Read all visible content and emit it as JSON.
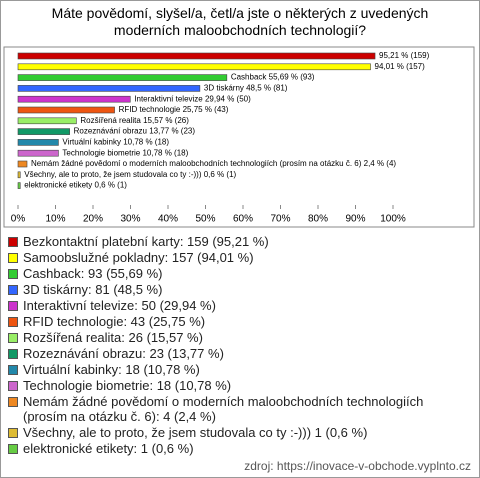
{
  "chart_data": {
    "type": "bar",
    "orientation": "horizontal",
    "title": "Máte povědomí, slyšel/a, četl/a jste o některých z uvedených moderních maloobchodních technologií?",
    "values": [
      95.21,
      94.01,
      55.69,
      48.5,
      29.94,
      25.75,
      15.57,
      13.77,
      10.78,
      10.78,
      2.4,
      0.6,
      0.6
    ],
    "value_labels": [
      "95,21 % (159)",
      "94,01 % (157)",
      "Cashback 55,69 % (93)",
      "3D tiskárny 48,5 % (81)",
      "Interaktivní televize 29,94 % (50)",
      "RFID technologie 25,75 % (43)",
      "Rozšířená realita 15,57 % (26)",
      "Rozeznávání obrazu 13,77 % (23)",
      "Virtuální kabinky 10,78 % (18)",
      "Technologie biometrie 10,78 % (18)",
      "Nemám žádné povědomí o moderních maloobchodních technologiích (prosím na otázku č. 6) 2,4 % (4)",
      "Všechny, ale to proto, že jsem studovala co ty :-))) 0,6 % (1)",
      "elektronické etikety 0,6 % (1)"
    ],
    "colors": [
      "#cc0000",
      "#ffff00",
      "#33cc33",
      "#3366ff",
      "#cc33cc",
      "#ee5511",
      "#99ee66",
      "#119966",
      "#2288aa",
      "#cc66cc",
      "#ee8822",
      "#ddbb33",
      "#66cc44"
    ],
    "legend": [
      "Bezkontaktní platební karty: 159 (95,21 %)",
      "Samoobslužné pokladny: 157 (94,01 %)",
      "Cashback: 93 (55,69 %)",
      "3D tiskárny: 81 (48,5 %)",
      "Interaktivní televize: 50 (29,94 %)",
      "RFID technologie: 43 (25,75 %)",
      "Rozšířená realita: 26 (15,57 %)",
      "Rozeznávání obrazu: 23 (13,77 %)",
      "Virtuální kabinky: 18 (10,78 %)",
      "Technologie biometrie: 18 (10,78 %)",
      "Nemám žádné povědomí o moderních maloobchodních technologiích (prosím na otázku č. 6): 4 (2,4 %)",
      "Všechny, ale to proto, že jsem studovala co ty :-))) 1 (0,6 %)",
      "elektronické etikety: 1 (0,6 %)"
    ],
    "xlim": [
      0,
      100
    ],
    "xticks": [
      {
        "value": 0,
        "label": "0%"
      },
      {
        "value": 10,
        "label": "10%"
      },
      {
        "value": 20,
        "label": "20%"
      },
      {
        "value": 30,
        "label": "30%"
      },
      {
        "value": 40,
        "label": "40%"
      },
      {
        "value": 50,
        "label": "50%"
      },
      {
        "value": 60,
        "label": "60%"
      },
      {
        "value": 70,
        "label": "70%"
      },
      {
        "value": 80,
        "label": "80%"
      },
      {
        "value": 90,
        "label": "90%"
      },
      {
        "value": 100,
        "label": "100%"
      }
    ],
    "grid": false,
    "source": "zdroj: https://inovace-v-obchode.vyplnto.cz"
  }
}
